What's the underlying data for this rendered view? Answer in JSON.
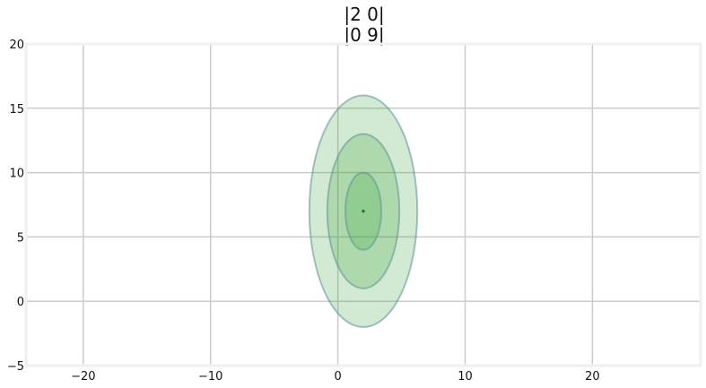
{
  "chart_data": {
    "type": "scatter",
    "title_lines": [
      "|2 0|",
      "|0 9|"
    ],
    "xlim": [
      -24.5,
      28.5
    ],
    "ylim": [
      -5,
      20
    ],
    "xticks": [
      {
        "value": -20,
        "label": "−20"
      },
      {
        "value": -10,
        "label": "−10"
      },
      {
        "value": 0,
        "label": "0"
      },
      {
        "value": 10,
        "label": "10"
      },
      {
        "value": 20,
        "label": "20"
      }
    ],
    "yticks": [
      {
        "value": -5,
        "label": "−5"
      },
      {
        "value": 0,
        "label": "0"
      },
      {
        "value": 5,
        "label": "5"
      },
      {
        "value": 10,
        "label": "10"
      },
      {
        "value": 15,
        "label": "15"
      },
      {
        "value": 20,
        "label": "20"
      }
    ],
    "grid": true,
    "mean": [
      2,
      7
    ],
    "covariance": [
      [
        2,
        0
      ],
      [
        0,
        9
      ]
    ],
    "ellipses": [
      {
        "std": 3,
        "semi_x": 4.24,
        "semi_y": 9
      },
      {
        "std": 2,
        "semi_x": 2.83,
        "semi_y": 6
      },
      {
        "std": 1,
        "semi_x": 1.41,
        "semi_y": 3
      }
    ],
    "colors": {
      "ellipse_fill": "#2ca02c",
      "ellipse_edge": "#5f8f99",
      "grid": "#cbcbcb",
      "frame": "#f0f0f0",
      "marker": "#333333"
    }
  }
}
